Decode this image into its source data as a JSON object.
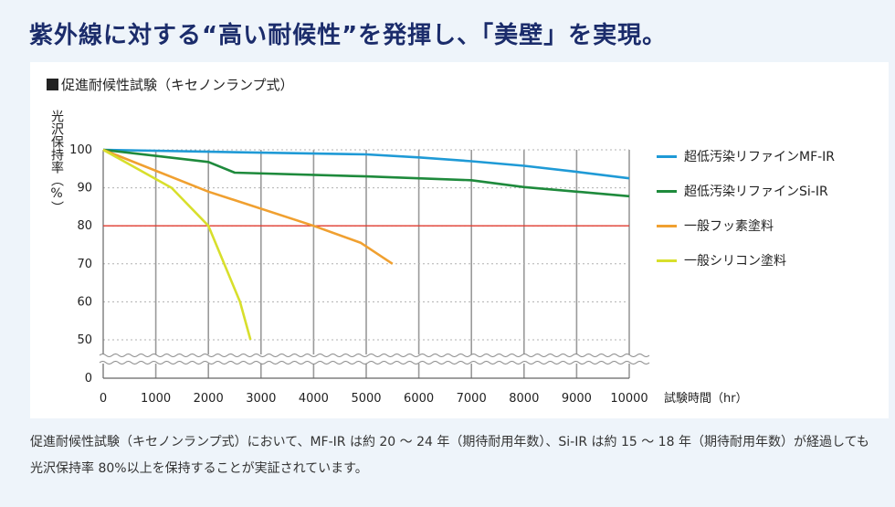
{
  "headline": "紫外線に対する“高い耐候性”を発揮し、「美壁」を実現。",
  "caption": "促進耐候性試験（キセノンランプ式）において、MF-IR は約 20 ～ 24 年（期待耐用年数）、Si-IR は約 15 ～ 18 年（期待耐用年数）が経過しても光沢保持率 80%以上を保持することが実証されています。",
  "chart_data": {
    "type": "line",
    "title": "■促進耐候性試験（キセノンランプ式）",
    "xlabel": "試験時間（hr）",
    "ylabel": "光沢保持率（%）",
    "x_ticks": [
      0,
      1000,
      2000,
      3000,
      4000,
      5000,
      6000,
      7000,
      8000,
      9000,
      10000
    ],
    "y_ticks": [
      0,
      50,
      60,
      70,
      80,
      90,
      100
    ],
    "xlim": [
      0,
      10000
    ],
    "ylim_upper": [
      45,
      100
    ],
    "axis_break": "between 0 and 50",
    "reference_line": {
      "y": 80,
      "color": "#e03a2e"
    },
    "grid": "dotted",
    "series": [
      {
        "name": "超低汚染リファインMF-IR",
        "color": "#1f9ad6",
        "points": [
          [
            0,
            100
          ],
          [
            2000,
            99.5
          ],
          [
            5000,
            98.8
          ],
          [
            6000,
            98.0
          ],
          [
            7000,
            97.0
          ],
          [
            8000,
            95.8
          ],
          [
            9000,
            94.2
          ],
          [
            10000,
            92.5
          ]
        ]
      },
      {
        "name": "超低汚染リファインSi-IR",
        "color": "#1e8a3c",
        "points": [
          [
            0,
            100
          ],
          [
            2000,
            96.8
          ],
          [
            2500,
            94.0
          ],
          [
            5000,
            93.0
          ],
          [
            7000,
            92.0
          ],
          [
            8000,
            90.2
          ],
          [
            9000,
            89.0
          ],
          [
            10000,
            87.8
          ]
        ]
      },
      {
        "name": "一般フッ素塗料",
        "color": "#f0a030",
        "points": [
          [
            0,
            100
          ],
          [
            2000,
            89.0
          ],
          [
            4000,
            80.0
          ],
          [
            4900,
            75.5
          ],
          [
            5500,
            70.0
          ]
        ]
      },
      {
        "name": "一般シリコン塗料",
        "color": "#d8df2c",
        "points": [
          [
            0,
            100
          ],
          [
            1300,
            90.0
          ],
          [
            2000,
            80.0
          ],
          [
            2600,
            60.0
          ],
          [
            2800,
            50.0
          ]
        ]
      }
    ]
  }
}
